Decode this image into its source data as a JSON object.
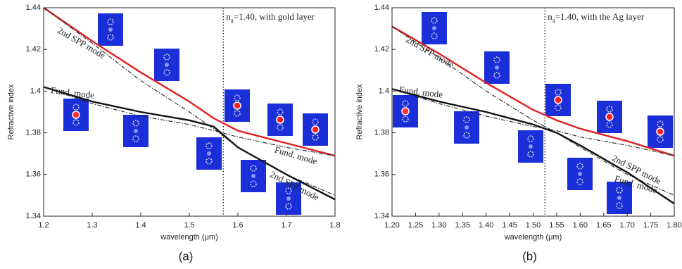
{
  "chart_data": [
    {
      "type": "line",
      "panel_label": "(a)",
      "x_label": "wavelength (μm)",
      "y_label": "Refractive index",
      "xlim": [
        1.2,
        1.8
      ],
      "xticks": [
        1.2,
        1.3,
        1.4,
        1.5,
        1.6,
        1.7,
        1.8
      ],
      "ylim": [
        1.34,
        1.44
      ],
      "yticks": [
        1.34,
        1.36,
        1.38,
        1.4,
        1.42,
        1.44
      ],
      "x": [
        1.2,
        1.3,
        1.4,
        1.5,
        1.55,
        1.6,
        1.7,
        1.8
      ],
      "series": [
        {
          "color": "#e02020",
          "style": "solid",
          "values": [
            1.44,
            1.424,
            1.409,
            1.395,
            1.387,
            1.381,
            1.375,
            1.369
          ]
        },
        {
          "color": "#111111",
          "style": "solid",
          "values": [
            1.402,
            1.395,
            1.39,
            1.386,
            1.383,
            1.373,
            1.36,
            1.348
          ]
        },
        {
          "color": "#222222",
          "style": "dashed",
          "values": [
            1.44,
            1.423,
            1.405,
            1.39,
            1.382,
            1.373,
            1.36,
            1.35
          ]
        },
        {
          "color": "#222222",
          "style": "dashed",
          "values": [
            1.402,
            1.394,
            1.388,
            1.384,
            1.381,
            1.378,
            1.373,
            1.369
          ]
        }
      ],
      "vline": 1.57,
      "condition": {
        "n": "n",
        "sub": "a",
        "rest": "=1.40, with gold layer"
      },
      "annotations": [
        "2nd SPP mode",
        "Fund. mode",
        "Fund. mode",
        "2nd SPP mode"
      ]
    },
    {
      "type": "line",
      "panel_label": "(b)",
      "x_label": "wavelength (μm)",
      "y_label": "Refractive index",
      "xlim": [
        1.2,
        1.8
      ],
      "xticks": [
        {
          "value": 1.2,
          "label": "1.20"
        },
        1.25,
        {
          "value": 1.3,
          "label": "1.30"
        },
        1.35,
        {
          "value": 1.4,
          "label": "1.40"
        },
        1.45,
        {
          "value": 1.5,
          "label": "1.50"
        },
        1.55,
        {
          "value": 1.6,
          "label": "1.60"
        },
        1.65,
        {
          "value": 1.7,
          "label": "1.70"
        },
        1.75,
        {
          "value": 1.8,
          "label": "1.80"
        }
      ],
      "ylim": [
        1.34,
        1.44
      ],
      "yticks": [
        1.34,
        1.36,
        1.38,
        1.4,
        1.42,
        1.44
      ],
      "x": [
        1.2,
        1.3,
        1.4,
        1.5,
        1.55,
        1.6,
        1.7,
        1.8
      ],
      "series": [
        {
          "color": "#e02020",
          "style": "solid",
          "values": [
            1.431,
            1.418,
            1.404,
            1.391,
            1.386,
            1.382,
            1.376,
            1.369
          ]
        },
        {
          "color": "#111111",
          "style": "solid",
          "values": [
            1.401,
            1.395,
            1.39,
            1.384,
            1.38,
            1.374,
            1.361,
            1.346
          ]
        },
        {
          "color": "#222222",
          "style": "dashed",
          "values": [
            1.431,
            1.416,
            1.4,
            1.386,
            1.38,
            1.373,
            1.36,
            1.35
          ]
        },
        {
          "color": "#222222",
          "style": "dashed",
          "values": [
            1.401,
            1.394,
            1.388,
            1.383,
            1.381,
            1.378,
            1.374,
            1.369
          ]
        }
      ],
      "vline": 1.525,
      "condition": {
        "n": "n",
        "sub": "a",
        "rest": "=1.40, with the Ag layer"
      },
      "annotations": [
        "2nd SPP mode",
        "Fund. mode",
        "Fund. mode",
        "2nd SPP mode"
      ]
    }
  ]
}
